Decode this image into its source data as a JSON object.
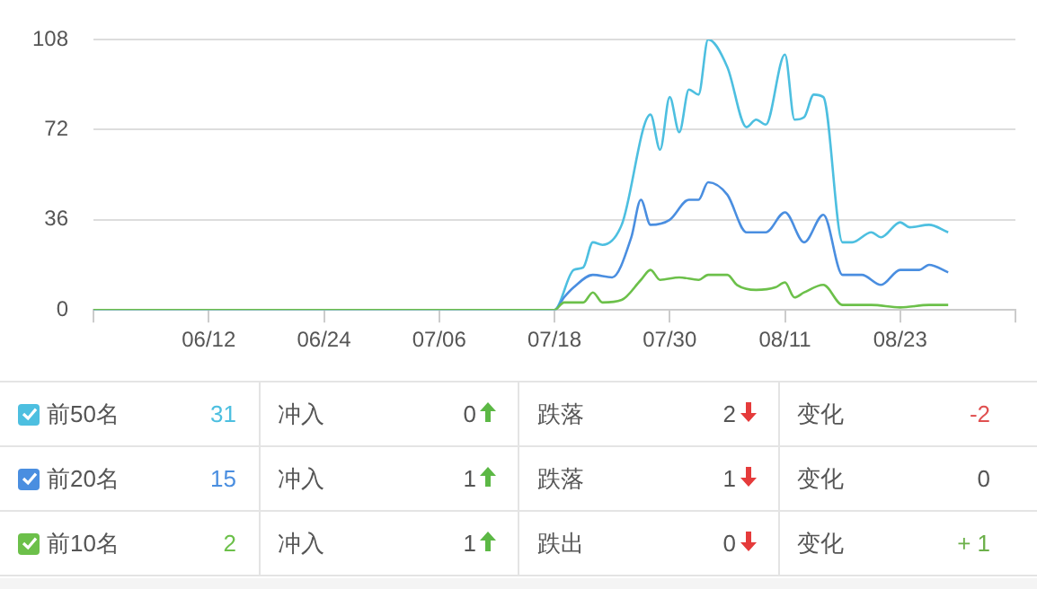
{
  "chart_data": [
    {
      "type": "line",
      "grid": "y",
      "marker": "none",
      "line_style": "solid",
      "xlim": [
        "--05-31",
        "--09-04"
      ],
      "xticks": [
        {
          "value": "--05-31",
          "label": null
        },
        {
          "value": "--06-12",
          "label": "06/12"
        },
        {
          "value": "--06-24",
          "label": "06/24"
        },
        {
          "value": "--07-06",
          "label": "07/06"
        },
        {
          "value": "--07-18",
          "label": "07/18"
        },
        {
          "value": "--07-30",
          "label": "07/30"
        },
        {
          "value": "--08-11",
          "label": "08/11"
        },
        {
          "value": "--08-23",
          "label": "08/23"
        },
        {
          "value": "--09-04",
          "label": null
        }
      ],
      "ylim": [
        0,
        108
      ],
      "yticks": [
        0,
        36,
        72,
        108
      ],
      "series": [
        {
          "name": "前50名",
          "color": "#4dbfe0",
          "x": [
            "--05-31",
            "--07-18",
            "--07-20",
            "--07-21",
            "--07-22",
            "--07-23",
            "--07-25",
            "--07-28",
            "--07-29",
            "--07-30",
            "--07-31",
            "--08-01",
            "--08-02",
            "--08-03",
            "--08-05",
            "--08-07",
            "--08-08",
            "--08-09",
            "--08-11",
            "--08-12",
            "--08-13",
            "--08-14",
            "--08-15",
            "--08-17",
            "--08-18",
            "--08-20",
            "--08-21",
            "--08-23",
            "--08-24",
            "--08-26",
            "--08-28"
          ],
          "values": [
            0,
            0,
            16,
            17,
            27,
            26,
            34,
            78,
            64,
            85,
            71,
            88,
            86,
            108,
            97,
            73,
            76,
            74,
            102,
            76,
            77,
            86,
            85,
            27,
            27,
            31,
            29,
            35,
            33,
            34,
            31
          ]
        },
        {
          "name": "前20名",
          "color": "#4a8ee0",
          "x": [
            "--05-31",
            "--07-18",
            "--07-19",
            "--07-20",
            "--07-22",
            "--07-24",
            "--07-26",
            "--07-27",
            "--07-28",
            "--07-30",
            "--08-01",
            "--08-02",
            "--08-03",
            "--08-05",
            "--08-07",
            "--08-09",
            "--08-11",
            "--08-13",
            "--08-15",
            "--08-17",
            "--08-19",
            "--08-21",
            "--08-23",
            "--08-25",
            "--08-26",
            "--08-28"
          ],
          "values": [
            0,
            0,
            5,
            9,
            14,
            13,
            29,
            44,
            34,
            36,
            44,
            44,
            51,
            46,
            31,
            31,
            39,
            27,
            38,
            14,
            14,
            10,
            16,
            16,
            18,
            15
          ]
        },
        {
          "name": "前10名",
          "color": "#6cc04a",
          "x": [
            "--05-31",
            "--07-18",
            "--07-19",
            "--07-21",
            "--07-22",
            "--07-23",
            "--07-25",
            "--07-27",
            "--07-28",
            "--07-29",
            "--07-31",
            "--08-02",
            "--08-03",
            "--08-05",
            "--08-06",
            "--08-08",
            "--08-10",
            "--08-11",
            "--08-12",
            "--08-13",
            "--08-15",
            "--08-17",
            "--08-20",
            "--08-23",
            "--08-26",
            "--08-28"
          ],
          "values": [
            0,
            0,
            3,
            3,
            7,
            3,
            4,
            12,
            16,
            12,
            13,
            12,
            14,
            14,
            10,
            8,
            9,
            11,
            5,
            7,
            10,
            2,
            2,
            1,
            2,
            2
          ]
        }
      ]
    },
    {
      "type": "other",
      "annotations": [
        "31",
        "冲入",
        "0",
        "跌落",
        "2",
        "变化",
        "-2",
        "15",
        "冲入",
        "1",
        "跌落",
        "1",
        "变化",
        "0",
        "2",
        "冲入",
        "1",
        "跌出",
        "0",
        "变化",
        "+ 1"
      ]
    }
  ]
}
